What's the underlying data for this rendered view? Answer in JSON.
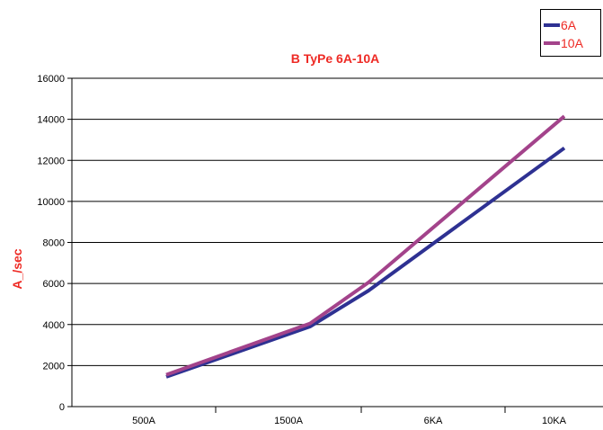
{
  "chart_data": {
    "type": "line",
    "title": "B TyPe 6A-10A",
    "ylabel": "A_/sec",
    "xlabel": "",
    "categories": [
      "500A",
      "1500A",
      "6KA",
      "10KA"
    ],
    "ylim": [
      0,
      16000
    ],
    "yticks": [
      0,
      2000,
      4000,
      6000,
      8000,
      10000,
      12000,
      14000,
      16000
    ],
    "grid": true,
    "legend": "top-right",
    "series": [
      {
        "name": "6A",
        "values": [
          1450,
          3900,
          5650,
          12600
        ],
        "color": "#2e3192"
      },
      {
        "name": "10A",
        "values": [
          1550,
          4050,
          6050,
          14150
        ],
        "color": "#a3438b"
      }
    ],
    "colors": {
      "title": "#ee2a24",
      "ylabel": "#ee2a24",
      "legend_text": "#ee2a24"
    }
  }
}
